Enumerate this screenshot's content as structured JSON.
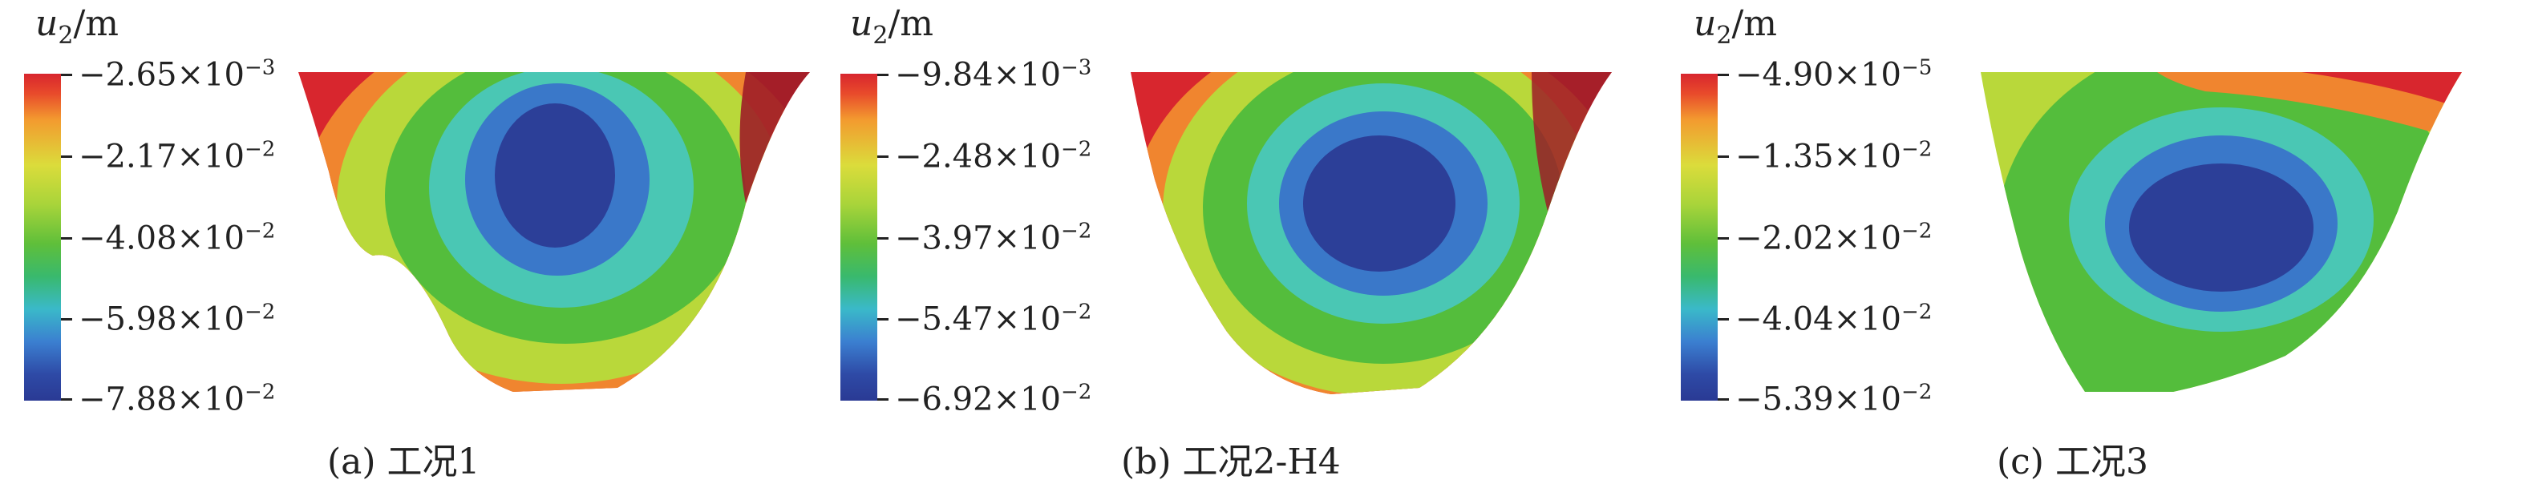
{
  "colors": {
    "red": "#d8262e",
    "orange": "#f0852f",
    "yellow_green": "#b9d83a",
    "green": "#54bd3c",
    "teal": "#4ac7b4",
    "blue": "#3a78c9",
    "navy": "#2c3f98",
    "dark_red": "#9e1e28"
  },
  "panels": [
    {
      "unit_var": "u",
      "unit_sub": "2",
      "unit_rest": "m",
      "ticks": [
        {
          "mantissa": "−2.65",
          "exp": "−3"
        },
        {
          "mantissa": "−2.17",
          "exp": "−2"
        },
        {
          "mantissa": "−4.08",
          "exp": "−2"
        },
        {
          "mantissa": "−5.98",
          "exp": "−2"
        },
        {
          "mantissa": "−7.88",
          "exp": "−2"
        }
      ],
      "caption": "(a) 工况1"
    },
    {
      "unit_var": "u",
      "unit_sub": "2",
      "unit_rest": "m",
      "ticks": [
        {
          "mantissa": "−9.84",
          "exp": "−3"
        },
        {
          "mantissa": "−2.48",
          "exp": "−2"
        },
        {
          "mantissa": "−3.97",
          "exp": "−2"
        },
        {
          "mantissa": "−5.47",
          "exp": "−2"
        },
        {
          "mantissa": "−6.92",
          "exp": "−2"
        }
      ],
      "caption": "(b) 工况2-H4"
    },
    {
      "unit_var": "u",
      "unit_sub": "2",
      "unit_rest": "m",
      "ticks": [
        {
          "mantissa": "−4.90",
          "exp": "−5"
        },
        {
          "mantissa": "−1.35",
          "exp": "−2"
        },
        {
          "mantissa": "−2.02",
          "exp": "−2"
        },
        {
          "mantissa": "−4.04",
          "exp": "−2"
        },
        {
          "mantissa": "−5.39",
          "exp": "−2"
        }
      ],
      "caption": "(c) 工况3"
    }
  ]
}
